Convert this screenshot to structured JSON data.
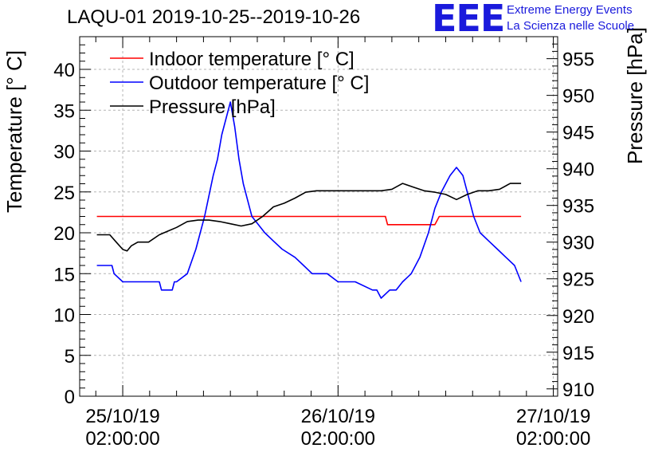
{
  "chart_data": {
    "type": "line",
    "title": "LAQU-01 2019-10-25--2019-10-26",
    "ylabel": "Temperature [° C]",
    "y2label": "Pressure [hPa]",
    "ylim": [
      0,
      44
    ],
    "y2lim": [
      909,
      958
    ],
    "xlim": [
      -0.2,
      2.02
    ],
    "grid": true,
    "legend_position": "top-left",
    "x_unit": "days since 25/10/19 02:00:00",
    "yticks": [
      0,
      5,
      10,
      15,
      20,
      25,
      30,
      35,
      40
    ],
    "y2ticks": [
      910,
      915,
      920,
      925,
      930,
      935,
      940,
      945,
      950,
      955
    ],
    "xticks": [
      {
        "date": "25/10/19",
        "time": "02:00:00",
        "value": 0
      },
      {
        "date": "26/10/19",
        "time": "02:00:00",
        "value": 1
      },
      {
        "date": "27/10/19",
        "time": "02:00:00",
        "value": 2
      }
    ],
    "series": [
      {
        "name": "Indoor temperature [° C]",
        "color": "#ff0000",
        "axis": "left",
        "x": [
          -0.12,
          0.25,
          0.5,
          0.75,
          1.22,
          1.23,
          1.45,
          1.47,
          1.7,
          1.85
        ],
        "y": [
          22,
          22,
          22,
          22,
          22,
          21,
          21,
          22,
          22,
          22
        ]
      },
      {
        "name": "Outdoor temperature [° C]",
        "color": "#0000ff",
        "axis": "left",
        "x": [
          -0.12,
          -0.05,
          -0.04,
          0.0,
          0.17,
          0.18,
          0.23,
          0.24,
          0.25,
          0.3,
          0.34,
          0.38,
          0.42,
          0.44,
          0.46,
          0.48,
          0.5,
          0.52,
          0.53,
          0.54,
          0.56,
          0.59,
          0.6,
          0.63,
          0.66,
          0.7,
          0.74,
          0.8,
          0.84,
          0.88,
          0.95,
          1.0,
          1.08,
          1.16,
          1.18,
          1.2,
          1.24,
          1.27,
          1.3,
          1.34,
          1.38,
          1.42,
          1.45,
          1.48,
          1.52,
          1.55,
          1.58,
          1.6,
          1.63,
          1.66,
          1.7,
          1.74,
          1.78,
          1.82,
          1.85
        ],
        "y": [
          16,
          16,
          15,
          14,
          14,
          13,
          13,
          14,
          14,
          15,
          18,
          22,
          27,
          29,
          32,
          34,
          36,
          33,
          31,
          29,
          26,
          23,
          22,
          21,
          20,
          19,
          18,
          17,
          16,
          15,
          15,
          14,
          14,
          13,
          13,
          12,
          13,
          13,
          14,
          15,
          17,
          20,
          23,
          25,
          27,
          28,
          27,
          25,
          22,
          20,
          19,
          18,
          17,
          16,
          14
        ]
      },
      {
        "name": "Pressure [hPa]",
        "color": "#000000",
        "axis": "right",
        "x": [
          -0.12,
          -0.06,
          -0.03,
          0.0,
          0.02,
          0.04,
          0.07,
          0.12,
          0.17,
          0.21,
          0.25,
          0.3,
          0.35,
          0.4,
          0.45,
          0.5,
          0.55,
          0.6,
          0.65,
          0.7,
          0.75,
          0.8,
          0.85,
          0.9,
          0.95,
          1.0,
          1.05,
          1.1,
          1.15,
          1.2,
          1.25,
          1.3,
          1.35,
          1.4,
          1.45,
          1.5,
          1.55,
          1.6,
          1.65,
          1.7,
          1.75,
          1.8,
          1.85
        ],
        "y": [
          931.0,
          931.0,
          930.0,
          929.0,
          928.8,
          929.5,
          930.0,
          930.0,
          931.0,
          931.5,
          932.0,
          932.8,
          933.0,
          933.0,
          932.8,
          932.5,
          932.2,
          932.5,
          933.5,
          934.8,
          935.3,
          936.0,
          936.8,
          937.0,
          937.0,
          937.0,
          937.0,
          937.0,
          937.0,
          937.0,
          937.2,
          938.0,
          937.5,
          937.0,
          936.8,
          936.5,
          935.8,
          936.5,
          937.0,
          937.0,
          937.2,
          938.0,
          938.0
        ]
      }
    ]
  },
  "logo": {
    "mark": "EEE",
    "line1": "Extreme Energy Events",
    "line2": "La Scienza nelle Scuole"
  }
}
